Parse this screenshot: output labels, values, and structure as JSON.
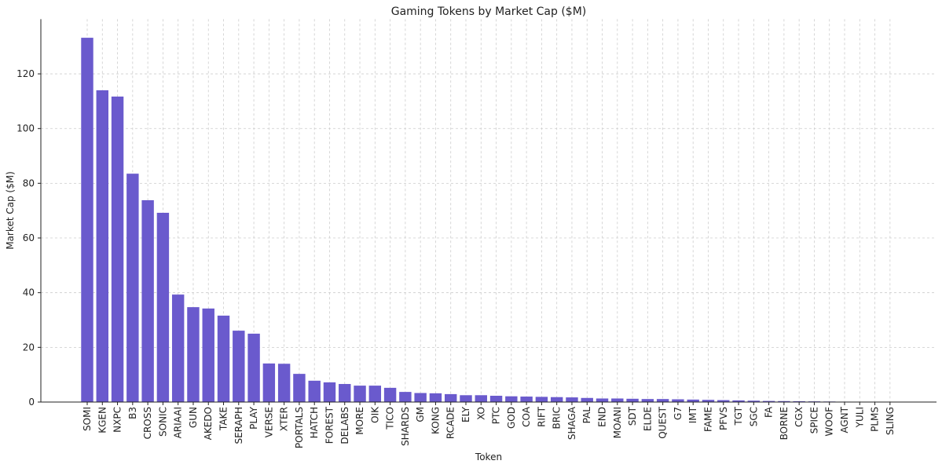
{
  "chart_data": {
    "type": "bar",
    "title": "Gaming Tokens by Market Cap ($M)",
    "x_label": "Token",
    "y_label": "Market Cap ($M)",
    "categories": [
      "SOMI",
      "KGEN",
      "NXPC",
      "B3",
      "CROSS",
      "SONIC",
      "ARIAAI",
      "GUN",
      "AKEDO",
      "TAKE",
      "SERAPH",
      "PLAY",
      "VERSE",
      "XTER",
      "PORTALS",
      "HATCH",
      "FOREST",
      "DELABS",
      "MORE",
      "OIK",
      "TICO",
      "SHARDS",
      "GM",
      "KONG",
      "RCADE",
      "ELY",
      "XO",
      "PTC",
      "GOD",
      "COA",
      "RIFT",
      "BRIC",
      "SHAGA",
      "PAL",
      "END",
      "MOANI",
      "SDT",
      "ELDE",
      "QUEST",
      "G7",
      "IMT",
      "FAME",
      "PFVS",
      "TGT",
      "SGC",
      "FA",
      "BORNE",
      "CGX",
      "SPICE",
      "WOOF",
      "AGNT",
      "YULI",
      "PLMS",
      "SLING"
    ],
    "values": [
      133.2,
      114,
      111.7,
      83.5,
      73.8,
      69.2,
      39.3,
      34.7,
      34.2,
      31.6,
      26.1,
      25,
      14.1,
      14,
      10.3,
      7.8,
      7.2,
      6.6,
      6,
      6,
      5.2,
      3.7,
      3.3,
      3.2,
      2.9,
      2.5,
      2.5,
      2.3,
      2.1,
      2,
      1.9,
      1.8,
      1.7,
      1.5,
      1.3,
      1.3,
      1.2,
      1.1,
      1.1,
      1,
      0.9,
      0.8,
      0.7,
      0.6,
      0.5,
      0.4,
      0.35,
      0.3,
      0.25,
      0.2,
      0.15,
      0.1,
      0.05,
      0.03
    ],
    "color": "#6a5acd",
    "ylim": [
      0,
      140
    ],
    "yticks": [
      0,
      20,
      40,
      60,
      80,
      100,
      120
    ],
    "grid": true
  }
}
